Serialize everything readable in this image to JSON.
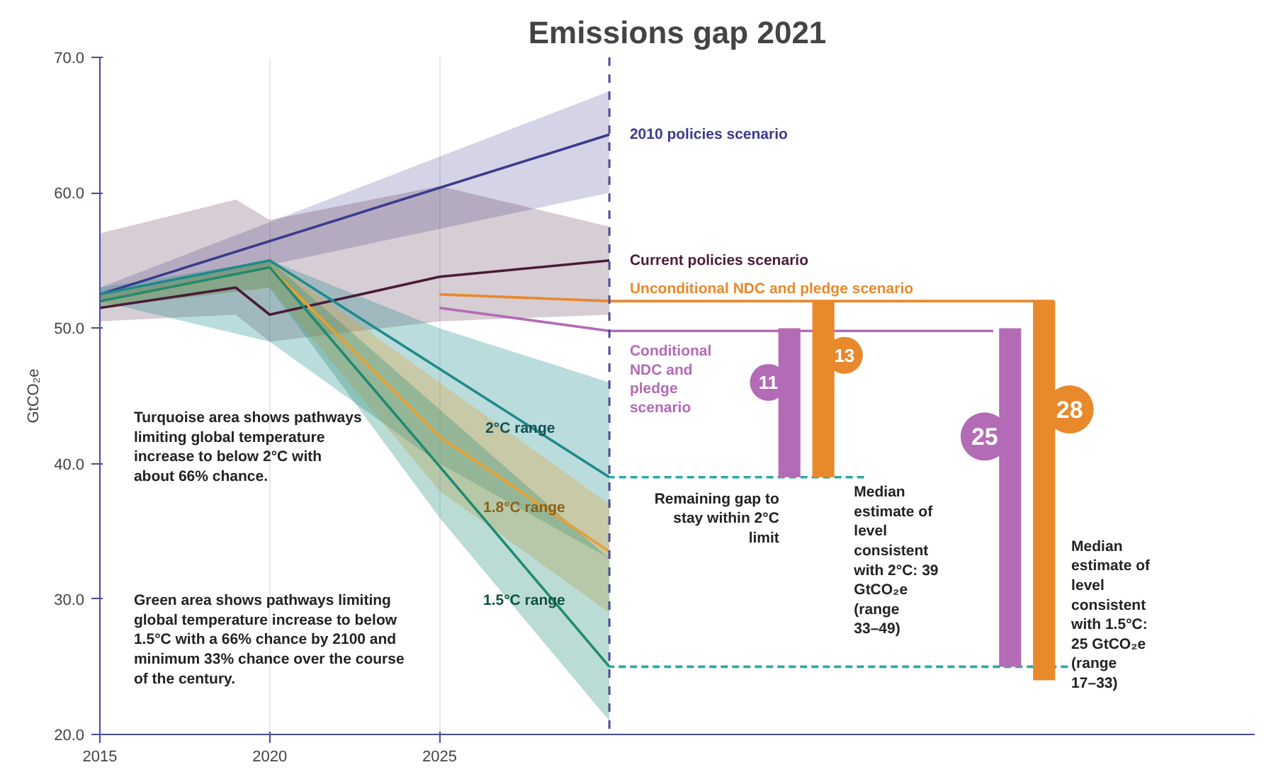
{
  "chart_data": {
    "type": "line",
    "title": "Emissions gap 2021",
    "ylabel": "GtCO₂e",
    "xlim": [
      2015,
      2049
    ],
    "ylim": [
      20,
      70
    ],
    "xticks": [
      2015,
      2020,
      2025
    ],
    "yticks": [
      {
        "value": 20,
        "label": "20.0"
      },
      {
        "value": 30,
        "label": "30.0"
      },
      {
        "value": 40,
        "label": "40.0"
      },
      {
        "value": 50,
        "label": "50.0"
      },
      {
        "value": 60,
        "label": "60.0"
      },
      {
        "value": 70,
        "label": "70.0"
      }
    ],
    "grid": "x",
    "ref_lines": [
      {
        "axis": "x",
        "value": 2030,
        "color": "#4a4a9a",
        "line_style": "dashed"
      }
    ],
    "series": [
      {
        "name": "2010 policies scenario",
        "color": "#3b3b8f",
        "x": [
          2015,
          2030
        ],
        "values": [
          52.5,
          64.3
        ],
        "lower": [
          52,
          60
        ],
        "upper": [
          53,
          67.5
        ]
      },
      {
        "name": "Current policies scenario",
        "color": "#4a1a3a",
        "x": [
          2015,
          2019,
          2020,
          2025,
          2030
        ],
        "values": [
          51.5,
          53,
          51,
          53.8,
          55
        ],
        "lower": [
          50.5,
          51,
          49,
          50.5,
          51
        ],
        "upper": [
          57,
          59.5,
          58,
          60.5,
          57.5
        ]
      },
      {
        "name": "Unconditional NDC and pledge scenario",
        "color": "#e8892c",
        "x": [
          2025,
          2030,
          2043.1
        ],
        "values": [
          52.5,
          52,
          52
        ]
      },
      {
        "name": "Conditional NDC and pledge scenario",
        "color": "#b36bb5",
        "x": [
          2025,
          2030,
          2041.3
        ],
        "values": [
          51.5,
          49.8,
          49.8
        ]
      },
      {
        "name": "2°C range",
        "color": "#1f8a8a",
        "x": [
          2015,
          2020,
          2025,
          2030
        ],
        "values": [
          52.5,
          55,
          47,
          39
        ],
        "lower": [
          52,
          49,
          40,
          33
        ],
        "upper": [
          53,
          55,
          50,
          46
        ]
      },
      {
        "name": "1.8°C range",
        "color": "#e8a030",
        "x": [
          2015,
          2020,
          2025,
          2030
        ],
        "values": [
          52,
          54.5,
          42,
          33.5
        ],
        "lower": [
          51.5,
          53,
          38,
          29
        ],
        "upper": [
          52.5,
          55,
          46,
          37
        ]
      },
      {
        "name": "1.5°C range",
        "color": "#1f8a70",
        "x": [
          2015,
          2020,
          2025,
          2030
        ],
        "values": [
          52,
          54.5,
          39.8,
          25
        ],
        "lower": [
          51.5,
          53,
          36,
          21
        ],
        "upper": [
          52.5,
          55,
          44,
          33
        ]
      },
      {
        "color": "#2aa8a8",
        "line_style": "dashed",
        "x": [
          2030,
          2037.5
        ],
        "values": [
          39,
          39
        ]
      },
      {
        "color": "#2aa8a8",
        "line_style": "dashed",
        "x": [
          2030,
          2043.5
        ],
        "values": [
          25,
          25
        ]
      },
      {
        "type": "bar",
        "colors": [
          "#b36bb5",
          "#e8892c",
          "#b36bb5",
          "#e8892c"
        ],
        "x": [
          2035.3,
          2036.3,
          2041.8,
          2042.8
        ],
        "base": [
          39,
          39,
          25,
          24
        ],
        "values": [
          11,
          13,
          25,
          28
        ],
        "value_labels": [
          "11",
          "13",
          "25",
          "28"
        ]
      }
    ],
    "annotations": [
      "Turquoise area shows pathways limiting global temperature increase to below 2°C with about 66% chance.",
      "Green area shows pathways limiting global temperature increase to below 1.5°C with a 66% chance by 2100 and minimum 33% chance over the course of the century.",
      "Remaining gap to stay within 2°C limit",
      {
        "text": "Median estimate of level consistent with 2°C: 39 GtCO₂e (range 33–49)",
        "x": 2037.2,
        "y": 39
      },
      {
        "text": "Median estimate of level consistent with 1.5°C: 25 GtCO₂e (range 17–33)",
        "x": 2043.6,
        "y": 25
      }
    ]
  }
}
